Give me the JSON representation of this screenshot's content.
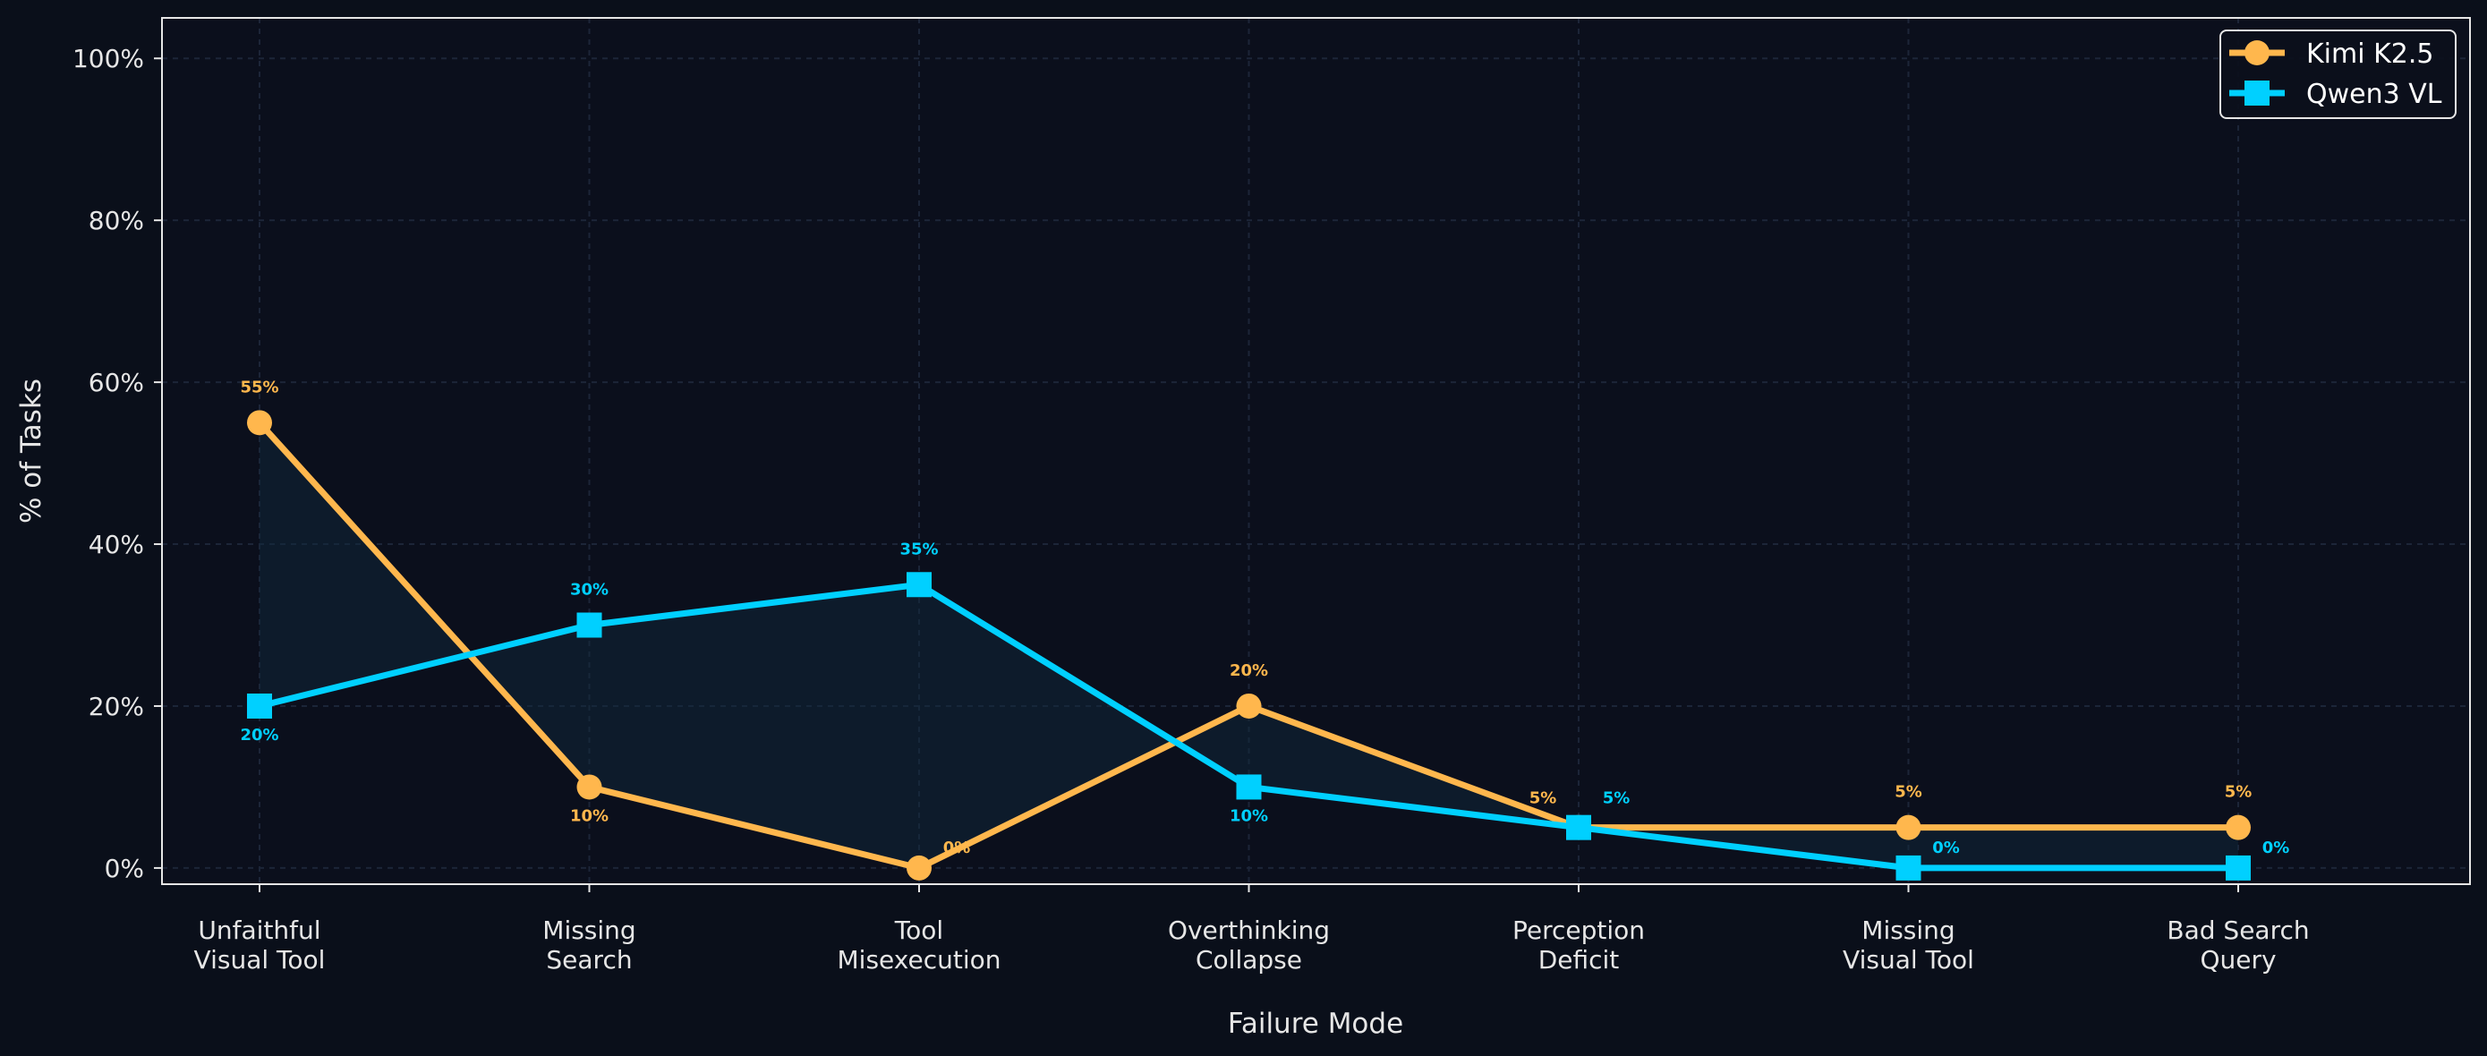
{
  "colors": {
    "background": "#0a0f1a",
    "plot_background": "#0b0f1c",
    "grid": "#1c2538",
    "axes": "#e6e6e6",
    "text": "#e6e6e6"
  },
  "chart_data": {
    "type": "line",
    "title": "",
    "xlabel": "Failure Mode",
    "ylabel": "% of Tasks",
    "categories": [
      [
        "Unfaithful",
        "Visual Tool"
      ],
      [
        "Missing",
        "Search"
      ],
      [
        "Tool",
        "Misexecution"
      ],
      [
        "Overthinking",
        "Collapse"
      ],
      [
        "Perception",
        "Deficit"
      ],
      [
        "Missing",
        "Visual Tool"
      ],
      [
        "Bad Search",
        "Query"
      ]
    ],
    "ylim": [
      -2,
      105
    ],
    "yticks": [
      0,
      20,
      40,
      60,
      80,
      100
    ],
    "ytick_labels": [
      "0%",
      "20%",
      "40%",
      "60%",
      "80%",
      "100%"
    ],
    "grid": true,
    "legend_position": "top-right",
    "shaded_area": "between series",
    "series": [
      {
        "name": "Kimi K2.5",
        "color": "#ffb74d",
        "marker": "circle",
        "values": [
          55,
          10,
          0,
          20,
          5,
          5,
          5
        ],
        "value_labels": [
          "55%",
          "10%",
          "0%",
          "20%",
          "5%",
          "5%",
          "5%"
        ]
      },
      {
        "name": "Qwen3 VL",
        "color": "#00d0ff",
        "marker": "square",
        "values": [
          20,
          30,
          35,
          10,
          5,
          0,
          0
        ],
        "value_labels": [
          "20%",
          "30%",
          "35%",
          "10%",
          "5%",
          "0%",
          "0%"
        ]
      }
    ]
  }
}
